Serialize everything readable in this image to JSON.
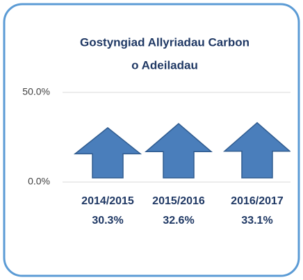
{
  "chart_data": {
    "type": "arrow",
    "title": [
      "Gostyngiad Allyriadau Carbon",
      "o Adeiladau"
    ],
    "categories": [
      "2014/2015",
      "2015/2016",
      "2016/2017"
    ],
    "values": [
      30.3,
      32.6,
      33.1
    ],
    "value_labels": [
      "30.3%",
      "32.6%",
      "33.1%"
    ],
    "color": "#4a7ebb",
    "ylim": [
      0,
      50
    ],
    "yticks": [
      {
        "value": 0,
        "label": "0.0%"
      },
      {
        "value": 50,
        "label": "50.0%"
      }
    ],
    "grid": true
  }
}
